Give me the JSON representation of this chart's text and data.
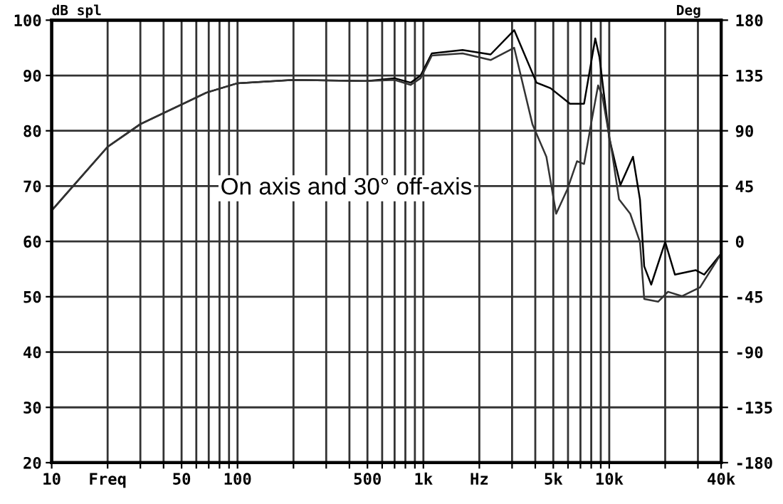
{
  "chart_data": {
    "type": "line",
    "xlabel": null,
    "ylabel": "dB spl",
    "y2label": "Deg",
    "log": "x",
    "annotations": [
      "On axis and 30° off-axis"
    ],
    "series": [
      {
        "color": "#000000",
        "x": [
          10,
          20,
          30,
          49,
          68,
          100,
          200,
          500,
          700,
          855,
          966,
          1110,
          1625,
          2300,
          3080,
          4060,
          4830,
          6150,
          7320,
          8410,
          8860,
          10000,
          11480,
          13420,
          14630,
          15420,
          16820,
          20000,
          22560,
          29240,
          32430,
          40000
        ],
        "values": [
          65.6,
          77.1,
          81.2,
          84.6,
          86.9,
          88.6,
          89.2,
          89,
          89.5,
          88.7,
          90,
          94,
          94.6,
          93.8,
          98.2,
          88.7,
          87.7,
          84.9,
          84.9,
          96.7,
          93.3,
          78.7,
          70.2,
          75.3,
          67.6,
          55.5,
          52.2,
          59.9,
          54,
          54.8,
          54,
          57.8
        ]
      },
      {
        "color": "#333333",
        "x": [
          10,
          20,
          30,
          49,
          68,
          100,
          200,
          500,
          700,
          855,
          966,
          1110,
          1625,
          2300,
          3080,
          3860,
          4590,
          5180,
          5950,
          6710,
          7320,
          7980,
          8710,
          9170,
          10350,
          11290,
          12970,
          14630,
          15420,
          18320,
          20700,
          24600,
          30800,
          40000
        ],
        "values": [
          65.6,
          77.1,
          81.2,
          84.6,
          86.9,
          88.6,
          89.2,
          89,
          89.2,
          88.3,
          89.5,
          93.6,
          94,
          92.8,
          95,
          81.2,
          75.3,
          65,
          69.4,
          74.5,
          74,
          81.2,
          88.2,
          86.4,
          76.1,
          67.6,
          65,
          59.9,
          49.6,
          49.1,
          50.9,
          50.1,
          51.7,
          57.8
        ]
      }
    ],
    "xlim": [
      10,
      40000
    ],
    "xticks": [
      10,
      {
        "value": 20,
        "label": "Freq"
      },
      {
        "value": 30,
        "label": null
      },
      {
        "value": 40,
        "label": null
      },
      50,
      {
        "value": 60,
        "label": null
      },
      {
        "value": 70,
        "label": null
      },
      {
        "value": 80,
        "label": null
      },
      {
        "value": 90,
        "label": null
      },
      100,
      {
        "value": 200,
        "label": null
      },
      {
        "value": 300,
        "label": null
      },
      {
        "value": 400,
        "label": null
      },
      500,
      {
        "value": 600,
        "label": null
      },
      {
        "value": 700,
        "label": null
      },
      {
        "value": 800,
        "label": null
      },
      {
        "value": 900,
        "label": null
      },
      {
        "value": 1000,
        "label": "1k"
      },
      {
        "value": 2000,
        "label": "Hz"
      },
      {
        "value": 3000,
        "label": null
      },
      {
        "value": 4000,
        "label": null
      },
      {
        "value": 5000,
        "label": "5k"
      },
      {
        "value": 6000,
        "label": null
      },
      {
        "value": 7000,
        "label": null
      },
      {
        "value": 8000,
        "label": null
      },
      {
        "value": 9000,
        "label": null
      },
      {
        "value": 10000,
        "label": "10k"
      },
      {
        "value": 20000,
        "label": null
      },
      {
        "value": 30000,
        "label": null
      },
      {
        "value": 40000,
        "label": "40k"
      }
    ],
    "ylim": [
      20,
      100
    ],
    "yticks": [
      20,
      30,
      40,
      50,
      60,
      70,
      80,
      90,
      100
    ],
    "y2lim": [
      -180,
      180
    ],
    "y2ticks": [
      -180,
      -135,
      -90,
      -45,
      0,
      45,
      90,
      135,
      180
    ],
    "grid": true,
    "line_style": "solid",
    "marker": "none"
  }
}
